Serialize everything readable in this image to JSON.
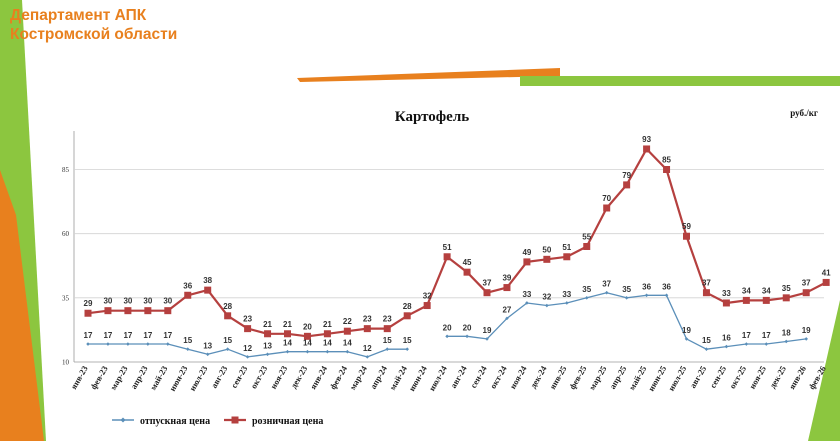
{
  "header": {
    "line1": "Департамент АПК",
    "line2": "Костромской области"
  },
  "colors": {
    "orange": "#e8801e",
    "green": "#8cc63f",
    "series1": "#5b8fb9",
    "series2": "#b5403f"
  },
  "chart_data": {
    "type": "line",
    "title": "Картофель",
    "unit": "руб./кг",
    "xlabel": "",
    "ylabel": "",
    "ylim": [
      10,
      100
    ],
    "yticks": [
      10,
      35,
      60,
      85
    ],
    "grid": true,
    "legend_position": "bottom",
    "categories": [
      "янв-23",
      "фев-23",
      "мар-23",
      "апр-23",
      "май-23",
      "июн-23",
      "июл-23",
      "авг-23",
      "сен-23",
      "окт-23",
      "ноя-23",
      "дек-23",
      "янв-24",
      "фев-24",
      "мар-24",
      "апр-24",
      "май-24",
      "июн-24",
      "июл-24",
      "авг-24",
      "сен-24",
      "окт-24",
      "ноя-24",
      "дек-24",
      "янв-25",
      "фев-25",
      "мар-25",
      "апр-25",
      "май-25",
      "июн-25",
      "июл-25",
      "авг-25",
      "сен-25",
      "окт-25",
      "ноя-25",
      "дек-25",
      "янв-26",
      "фев-26"
    ],
    "series": [
      {
        "name": "отпускная цена",
        "values": [
          17,
          17,
          17,
          17,
          17,
          15,
          13,
          15,
          12,
          13,
          14,
          14,
          14,
          14,
          12,
          15,
          15,
          null,
          20,
          20,
          19,
          27,
          33,
          32,
          33,
          35,
          37,
          35,
          36,
          36,
          19,
          15,
          16,
          17,
          17,
          18,
          19,
          null
        ],
        "labels": [
          "17",
          "17",
          "17",
          "17",
          "17",
          "15",
          "13",
          "15",
          "12",
          "13",
          "14",
          "14",
          "14",
          "14",
          "12",
          "15",
          "15",
          "",
          "20",
          "20",
          "19",
          "27",
          "33",
          "32",
          "33",
          "35",
          "37",
          "35",
          "36",
          "36",
          "19",
          "15",
          "16",
          "17",
          "17",
          "18",
          "19",
          ""
        ]
      },
      {
        "name": "розничная цена",
        "values": [
          29,
          30,
          30,
          30,
          30,
          36,
          38,
          28,
          23,
          21,
          21,
          20,
          21,
          22,
          23,
          23,
          28,
          32,
          51,
          45,
          37,
          39,
          49,
          50,
          51,
          55,
          70,
          79,
          93,
          85,
          59,
          37,
          33,
          34,
          34,
          35,
          37,
          41
        ],
        "labels": [
          "29",
          "30",
          "30",
          "30",
          "30",
          "36",
          "38",
          "28",
          "23",
          "21",
          "21",
          "20",
          "21",
          "22",
          "23",
          "23",
          "28",
          "32",
          "51",
          "45",
          "37",
          "39",
          "49",
          "50",
          "51",
          "55",
          "70",
          "79",
          "93",
          "85",
          "59",
          "37",
          "33",
          "34",
          "34",
          "35",
          "37",
          "41"
        ]
      }
    ]
  }
}
